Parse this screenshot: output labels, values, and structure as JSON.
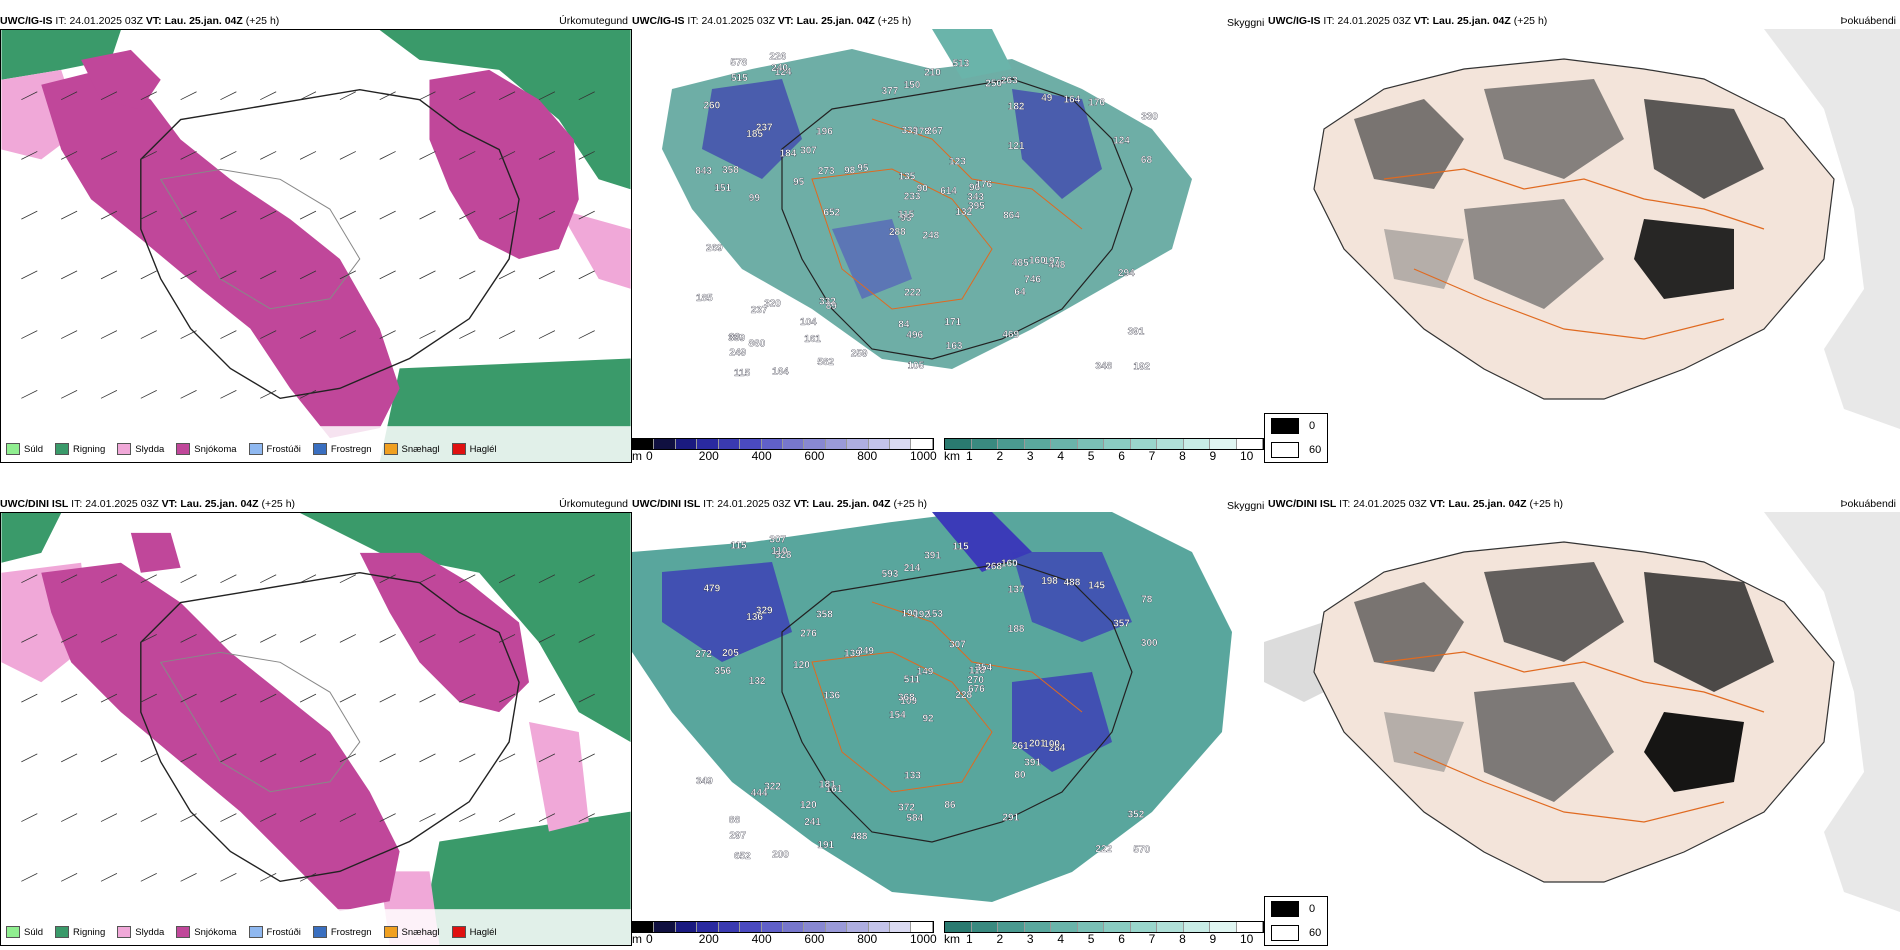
{
  "row1": {
    "precip": {
      "model": "UWC/IG-IS",
      "it_prefix": "IT:",
      "it": "24.01.2025 03Z",
      "vt_prefix": "VT:",
      "vt": "Lau. 25.jan. 04Z",
      "lead": "(+25 h)",
      "title_right": "Úrkomutegund"
    },
    "dew": {
      "model": "UWC/IG-IS",
      "it_prefix": "IT:",
      "it": "24.01.2025 03Z",
      "vt_prefix": "VT:",
      "vt": "Lau. 25.jan. 04Z",
      "lead": "(+25 h)"
    },
    "fog": {
      "left_label": "Skyggni",
      "model": "UWC/IG-IS",
      "it_prefix": "IT:",
      "it": "24.01.2025 03Z",
      "vt_prefix": "VT:",
      "vt": "Lau. 25.jan. 04Z",
      "lead": "(+25 h)",
      "title_right": "Þokuábendi"
    }
  },
  "row2": {
    "precip": {
      "model": "UWC/DINI ISL",
      "it_prefix": "IT:",
      "it": "24.01.2025 03Z",
      "vt_prefix": "VT:",
      "vt": "Lau. 25.jan. 04Z",
      "lead": "(+25 h)",
      "title_right": "Úrkomutegund"
    },
    "dew": {
      "model": "UWC/DINI ISL",
      "it_prefix": "IT:",
      "it": "24.01.2025 03Z",
      "vt_prefix": "VT:",
      "vt": "Lau. 25.jan. 04Z",
      "lead": "(+25 h)"
    },
    "fog": {
      "left_label": "Skyggni",
      "model": "UWC/DINI ISL",
      "it_prefix": "IT:",
      "it": "24.01.2025 03Z",
      "vt_prefix": "VT:",
      "vt": "Lau. 25.jan. 04Z",
      "lead": "(+25 h)",
      "title_right": "Þokuábendi"
    }
  },
  "precip_legend": [
    {
      "label": "Súld",
      "color": "#90ee90"
    },
    {
      "label": "Rigning",
      "color": "#3a9a6a"
    },
    {
      "label": "Slydda",
      "color": "#f0a8d8"
    },
    {
      "label": "Snjókoma",
      "color": "#c0479a"
    },
    {
      "label": "Frostúði",
      "color": "#8fb8f0"
    },
    {
      "label": "Frostregn",
      "color": "#3a6fc0"
    },
    {
      "label": "Snæhagl",
      "color": "#f0a020"
    },
    {
      "label": "Haglél",
      "color": "#e01010"
    }
  ],
  "height_scale": {
    "unit": "m",
    "ticks": [
      "0",
      "200",
      "400",
      "600",
      "800",
      "1000"
    ],
    "colors": [
      "#000000",
      "#101040",
      "#1a1a80",
      "#2a2aa0",
      "#3a3ab0",
      "#4a4ac0",
      "#6060c8",
      "#7777cc",
      "#8888d2",
      "#9a9ad8",
      "#aeaee0",
      "#c4c4ea",
      "#dadaf2",
      "#ffffff"
    ]
  },
  "km_scale": {
    "unit": "km",
    "ticks": [
      "1",
      "2",
      "3",
      "4",
      "5",
      "6",
      "7",
      "8",
      "9",
      "10"
    ],
    "colors": [
      "#2a7a70",
      "#3a8a80",
      "#4a9a90",
      "#5aa89e",
      "#6ab4aa",
      "#7ac0b6",
      "#8accc2",
      "#9ad6cc",
      "#b0e0d8",
      "#c8ece6",
      "#e0f6f2",
      "#ffffff"
    ]
  },
  "fog_legend": [
    {
      "label": "0",
      "color": "#000000"
    },
    {
      "label": "60",
      "color": "#ffffff"
    }
  ],
  "colors": {
    "snow": "#c0479a",
    "rain": "#3a9a6a",
    "sleet": "#f0a8d8",
    "cloud_teal": "#3c978c",
    "cloud_blue": "#3b3bb8",
    "coast": "#222222",
    "roads": "#e06a20",
    "fog_land": "#f3e4da",
    "fog_dark": "#202020"
  },
  "row1_labels": [
    "248",
    "185",
    "93",
    "80",
    "96",
    "89",
    "263",
    "267",
    "182",
    "132",
    "124",
    "192",
    "99",
    "330",
    "288",
    "121",
    "164",
    "339",
    "123",
    "320",
    "95",
    "249",
    "161",
    "178",
    "176",
    "448",
    "237",
    "150",
    "151",
    "485",
    "68",
    "115",
    "84",
    "233",
    "196",
    "49",
    "332",
    "348",
    "391",
    "197",
    "513",
    "98",
    "95",
    "64",
    "582",
    "843",
    "343",
    "115",
    "496",
    "395",
    "237",
    "124",
    "260",
    "746",
    "469",
    "104",
    "240",
    "578",
    "171",
    "176",
    "210",
    "652",
    "358",
    "307",
    "164",
    "226",
    "250",
    "377",
    "90",
    "185",
    "222",
    "259",
    "160",
    "273",
    "339",
    "515",
    "184",
    "269",
    "135",
    "163",
    "614",
    "860",
    "864",
    "294",
    "105"
  ],
  "row2_labels": [
    "92",
    "136",
    "109",
    "88",
    "118",
    "161",
    "160",
    "153",
    "137",
    "228",
    "528",
    "570",
    "132",
    "78",
    "154",
    "188",
    "200",
    "190",
    "307",
    "322",
    "349",
    "297",
    "241",
    "192",
    "354",
    "284",
    "329",
    "214",
    "356",
    "261",
    "300",
    "368",
    "372",
    "511",
    "358",
    "198",
    "181",
    "222",
    "352",
    "100",
    "115",
    "139",
    "120",
    "80",
    "191",
    "272",
    "270",
    "652",
    "584",
    "676",
    "444",
    "357",
    "479",
    "391",
    "291",
    "120",
    "110",
    "115",
    "86",
    "145",
    "391",
    "136",
    "205",
    "276",
    "488",
    "307",
    "268",
    "593",
    "149",
    "349",
    "133",
    "488",
    "201"
  ]
}
